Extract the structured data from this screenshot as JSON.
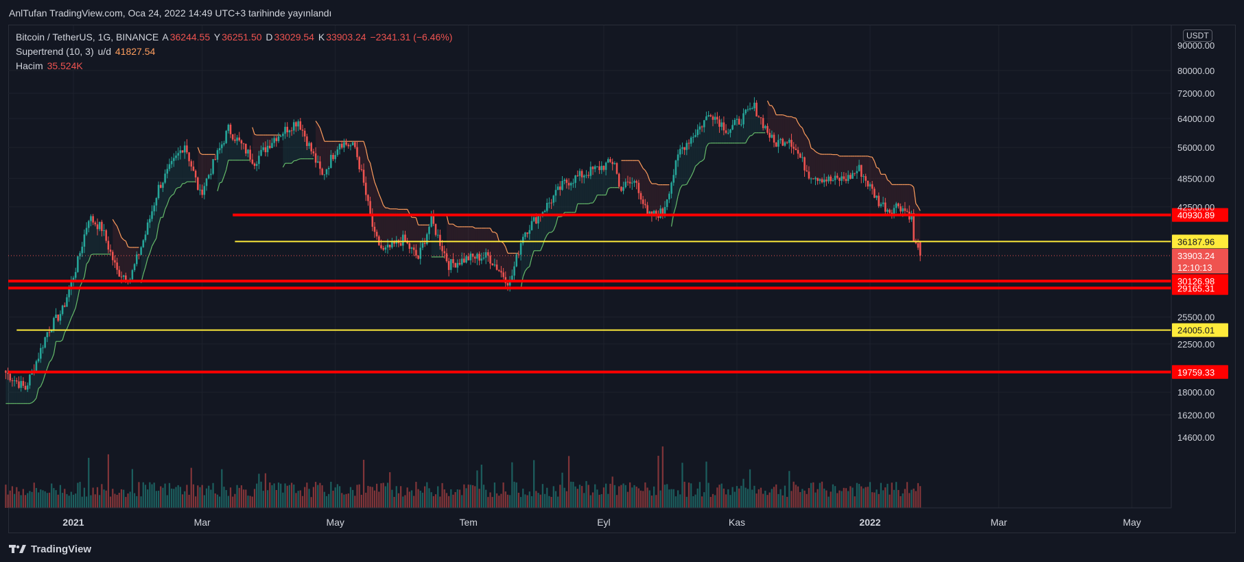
{
  "header": {
    "published": "AnlTufan TradingView.com, Oca 24, 2022 14:49 UTC+3 tarihinde yayınlandı"
  },
  "legend": {
    "symbol": "Bitcoin / TetherUS, 1G, BINANCE",
    "o_label": "A",
    "o_value": "36244.55",
    "h_label": "Y",
    "h_value": "36251.50",
    "l_label": "D",
    "l_value": "33029.54",
    "c_label": "K",
    "c_value": "33903.24",
    "change": "−2341.31 (−6.46%)",
    "supertrend_label": "Supertrend (10, 3)",
    "supertrend_mode": "u/d",
    "supertrend_value": "41827.54",
    "volume_label": "Hacim",
    "volume_value": "35.524K"
  },
  "currency": "USDT",
  "footer": {
    "brand": "TradingView"
  },
  "colors": {
    "background": "#131722",
    "grid": "#1e222d",
    "up": "#26a69a",
    "down": "#ef5350",
    "level_red": "#ff0000",
    "level_yellow": "#ffeb3b",
    "supertrend_up": "#66bb6a",
    "supertrend_down": "#ff9e5e"
  },
  "chart_data": {
    "type": "candlestick",
    "symbol": "Bitcoin / TetherUS",
    "interval": "1G",
    "y_scale": "log",
    "y_axis_ticks": [
      "14600.00",
      "16200.00",
      "18000.00",
      "19759.33",
      "22500.00",
      "24005.01",
      "25500.00",
      "29165.31",
      "30126.98",
      "33903.24",
      "36187.96",
      "40930.89",
      "42500.00",
      "48500.00",
      "56000.00",
      "64000.00",
      "72000.00",
      "80000.00",
      "90000.00"
    ],
    "x_axis_ticks": [
      "2021",
      "Mar",
      "May",
      "Tem",
      "Eyl",
      "Kas",
      "2022",
      "Mar",
      "May"
    ],
    "price_labels": [
      {
        "value": "40930.89",
        "color": "#ff0000"
      },
      {
        "value": "36187.96",
        "color": "#ffeb3b"
      },
      {
        "value": "33903.24",
        "sub": "12:10:13",
        "color": "#ef5350"
      },
      {
        "value": "30126.98",
        "color": "#ff0000"
      },
      {
        "value": "29165.31",
        "color": "#ff0000"
      },
      {
        "value": "24005.01",
        "color": "#ffeb3b"
      },
      {
        "value": "19759.33",
        "color": "#ff0000"
      }
    ],
    "horizontal_levels": [
      {
        "price": 40930.89,
        "color": "red",
        "from": "2021-03-15"
      },
      {
        "price": 36187.96,
        "color": "yellow",
        "from": "2021-03-16"
      },
      {
        "price": 30126.98,
        "color": "red",
        "from": "2020-12-01"
      },
      {
        "price": 29165.31,
        "color": "red",
        "from": "2020-12-01"
      },
      {
        "price": 24005.01,
        "color": "yellow",
        "from": "2020-12-06"
      },
      {
        "price": 19759.33,
        "color": "red",
        "from": "2020-12-01"
      }
    ],
    "keypoints": [
      {
        "date": "2020-12-01",
        "close": 19700
      },
      {
        "date": "2020-12-10",
        "close": 18300
      },
      {
        "date": "2020-12-16",
        "close": 21300
      },
      {
        "date": "2020-12-20",
        "close": 23800
      },
      {
        "date": "2020-12-27",
        "close": 26300
      },
      {
        "date": "2021-01-03",
        "close": 33000
      },
      {
        "date": "2021-01-08",
        "close": 40500
      },
      {
        "date": "2021-01-14",
        "close": 38500
      },
      {
        "date": "2021-01-21",
        "close": 31500
      },
      {
        "date": "2021-01-27",
        "close": 30500
      },
      {
        "date": "2021-02-03",
        "close": 37500
      },
      {
        "date": "2021-02-09",
        "close": 46500
      },
      {
        "date": "2021-02-21",
        "close": 57000
      },
      {
        "date": "2021-02-28",
        "close": 45000
      },
      {
        "date": "2021-03-13",
        "close": 61000
      },
      {
        "date": "2021-03-25",
        "close": 52500
      },
      {
        "date": "2021-04-03",
        "close": 58500
      },
      {
        "date": "2021-04-14",
        "close": 63500
      },
      {
        "date": "2021-04-25",
        "close": 49000
      },
      {
        "date": "2021-05-03",
        "close": 57500
      },
      {
        "date": "2021-05-10",
        "close": 56000
      },
      {
        "date": "2021-05-13",
        "close": 49500
      },
      {
        "date": "2021-05-19",
        "close": 37000
      },
      {
        "date": "2021-05-23",
        "close": 34500
      },
      {
        "date": "2021-06-01",
        "close": 36500
      },
      {
        "date": "2021-06-08",
        "close": 33500
      },
      {
        "date": "2021-06-14",
        "close": 40000
      },
      {
        "date": "2021-06-22",
        "close": 32500
      },
      {
        "date": "2021-07-01",
        "close": 33500
      },
      {
        "date": "2021-07-10",
        "close": 33800
      },
      {
        "date": "2021-07-20",
        "close": 29800
      },
      {
        "date": "2021-07-26",
        "close": 37500
      },
      {
        "date": "2021-08-06",
        "close": 42800
      },
      {
        "date": "2021-08-14",
        "close": 47500
      },
      {
        "date": "2021-08-22",
        "close": 49300
      },
      {
        "date": "2021-09-06",
        "close": 52500
      },
      {
        "date": "2021-09-08",
        "close": 46500
      },
      {
        "date": "2021-09-16",
        "close": 47800
      },
      {
        "date": "2021-09-21",
        "close": 40600
      },
      {
        "date": "2021-09-28",
        "close": 41500
      },
      {
        "date": "2021-10-06",
        "close": 55300
      },
      {
        "date": "2021-10-15",
        "close": 61500
      },
      {
        "date": "2021-10-20",
        "close": 66000
      },
      {
        "date": "2021-10-28",
        "close": 60500
      },
      {
        "date": "2021-11-09",
        "close": 67500
      },
      {
        "date": "2021-11-18",
        "close": 57000
      },
      {
        "date": "2021-11-25",
        "close": 58500
      },
      {
        "date": "2021-12-04",
        "close": 49500
      },
      {
        "date": "2021-12-14",
        "close": 48000
      },
      {
        "date": "2021-12-22",
        "close": 48600
      },
      {
        "date": "2021-12-27",
        "close": 50700
      },
      {
        "date": "2022-01-05",
        "close": 43500
      },
      {
        "date": "2022-01-10",
        "close": 41800
      },
      {
        "date": "2022-01-14",
        "close": 43000
      },
      {
        "date": "2022-01-20",
        "close": 40700
      },
      {
        "date": "2022-01-21",
        "close": 36400
      },
      {
        "date": "2022-01-24",
        "close": 33903.24
      }
    ],
    "volume_ticks_note": "",
    "grid": true
  }
}
